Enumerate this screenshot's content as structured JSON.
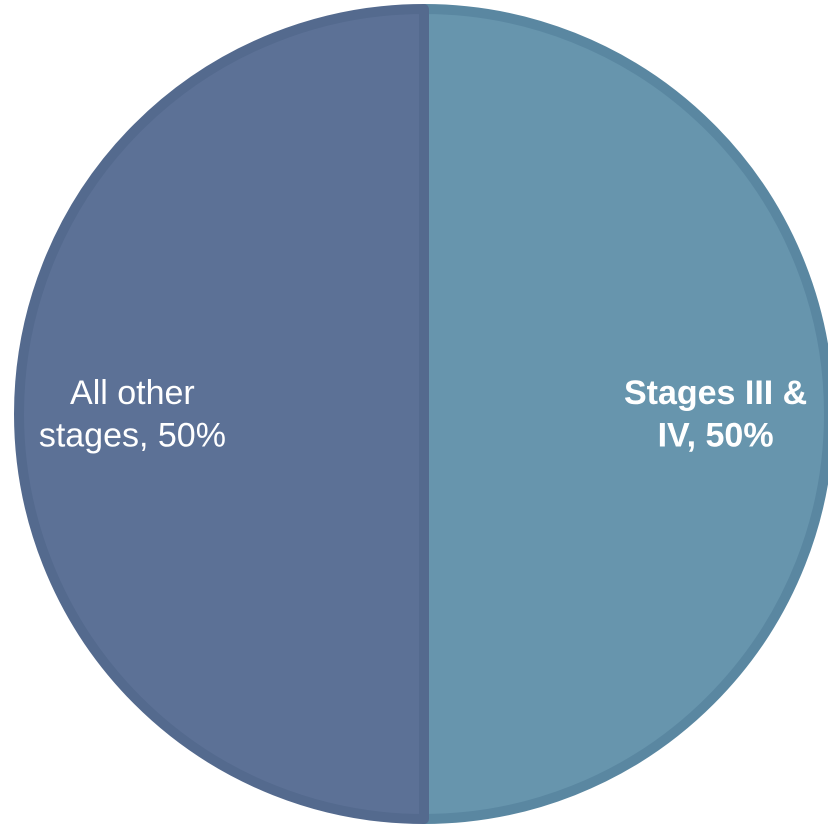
{
  "chart_data": {
    "type": "pie",
    "slices": [
      {
        "label_lines": [
          "Stages III &",
          "IV, 50%"
        ],
        "category": "Stages III & IV",
        "value": 50,
        "color": "#6795ad",
        "edge_color": "#5a87a1",
        "label_bold": true
      },
      {
        "label_lines": [
          "All other",
          "stages, 50%"
        ],
        "category": "All other stages",
        "value": 50,
        "color": "#5c7196",
        "edge_color": "#546a8e",
        "label_bold": false
      }
    ],
    "start_angle_deg": 0,
    "direction": "clockwise",
    "legend": "none",
    "title": ""
  }
}
